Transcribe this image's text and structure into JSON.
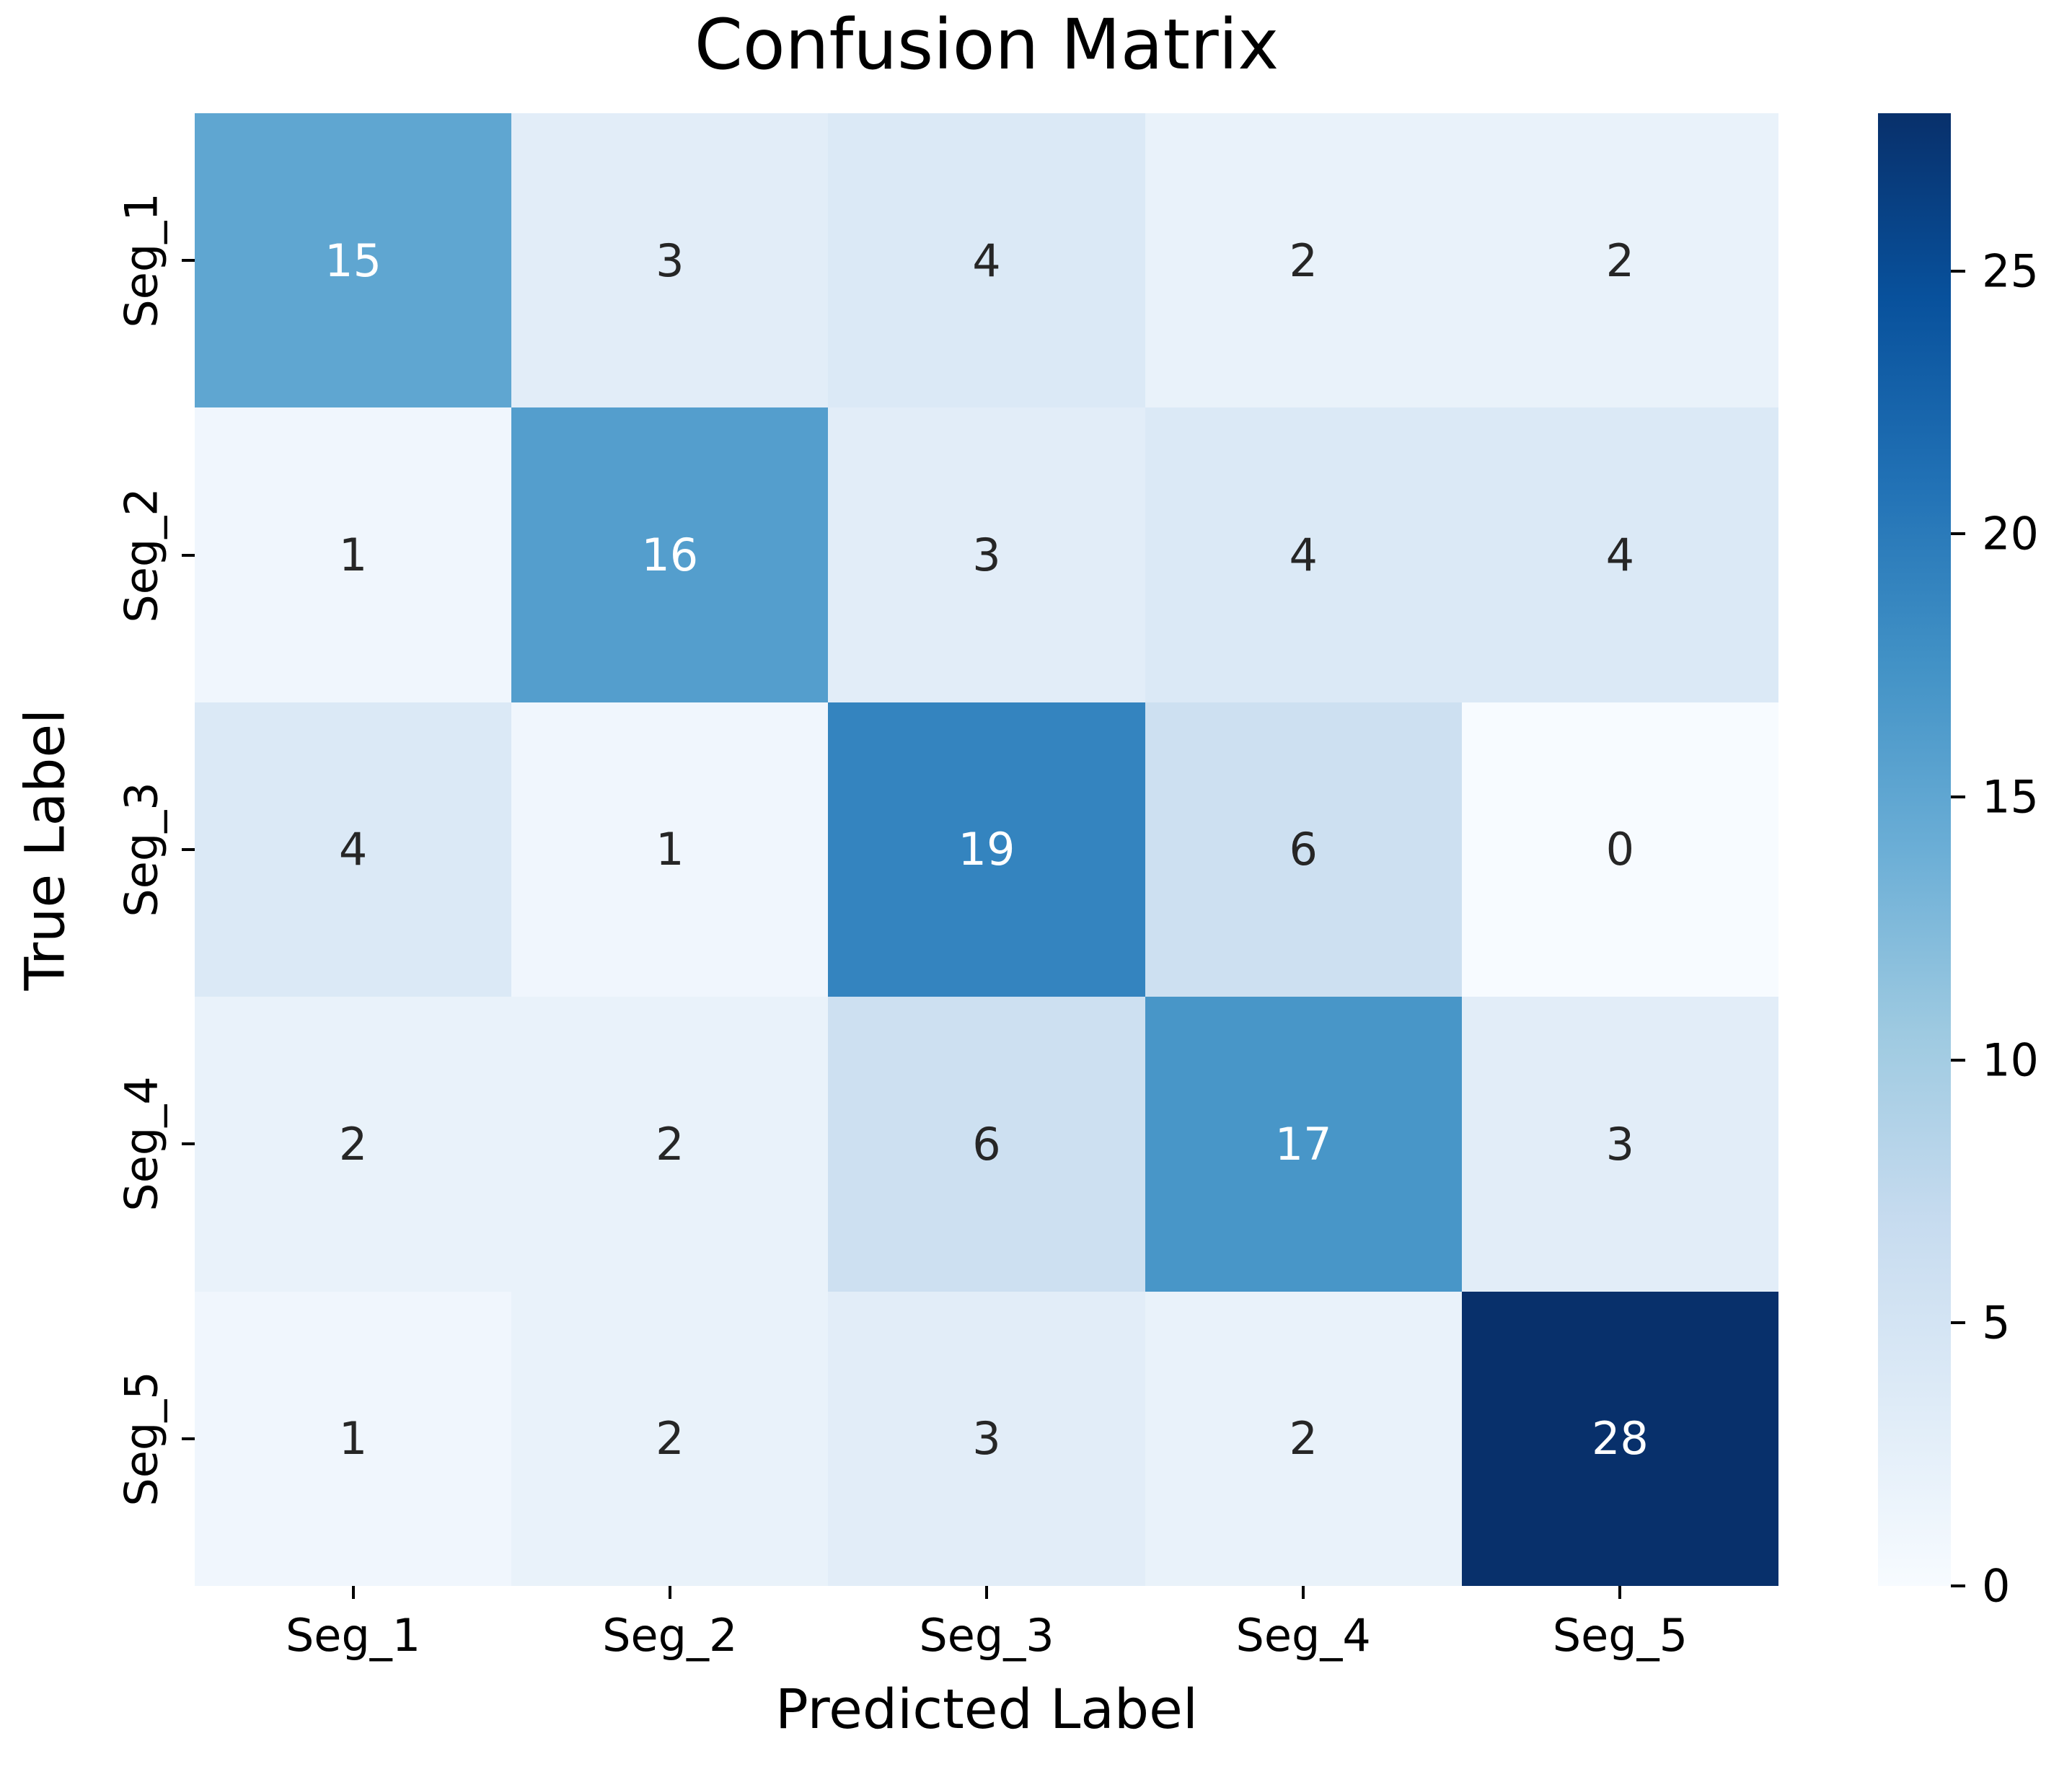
{
  "chart_data": {
    "type": "heatmap",
    "title": "Confusion Matrix",
    "xlabel": "Predicted Label",
    "ylabel": "True Label",
    "x_categories": [
      "Seg_1",
      "Seg_2",
      "Seg_3",
      "Seg_4",
      "Seg_5"
    ],
    "y_categories": [
      "Seg_1",
      "Seg_2",
      "Seg_3",
      "Seg_4",
      "Seg_5"
    ],
    "values": [
      [
        15,
        3,
        4,
        2,
        2
      ],
      [
        1,
        16,
        3,
        4,
        4
      ],
      [
        4,
        1,
        19,
        6,
        0
      ],
      [
        2,
        2,
        6,
        17,
        3
      ],
      [
        1,
        2,
        3,
        2,
        28
      ]
    ],
    "vmin": 0,
    "vmax": 28,
    "colormap": {
      "name": "Blues",
      "stops": [
        "#f7fbff",
        "#deebf7",
        "#c6dbef",
        "#9ecae1",
        "#6baed6",
        "#4292c6",
        "#2171b5",
        "#08519c",
        "#08306b"
      ]
    },
    "colorbar_ticks": [
      0,
      5,
      10,
      15,
      20,
      25
    ],
    "annot_dark_color": "#262626",
    "annot_light_color": "#ffffff",
    "background_color": "#ffffff",
    "legend_position": "right-colorbar",
    "grid": false
  }
}
